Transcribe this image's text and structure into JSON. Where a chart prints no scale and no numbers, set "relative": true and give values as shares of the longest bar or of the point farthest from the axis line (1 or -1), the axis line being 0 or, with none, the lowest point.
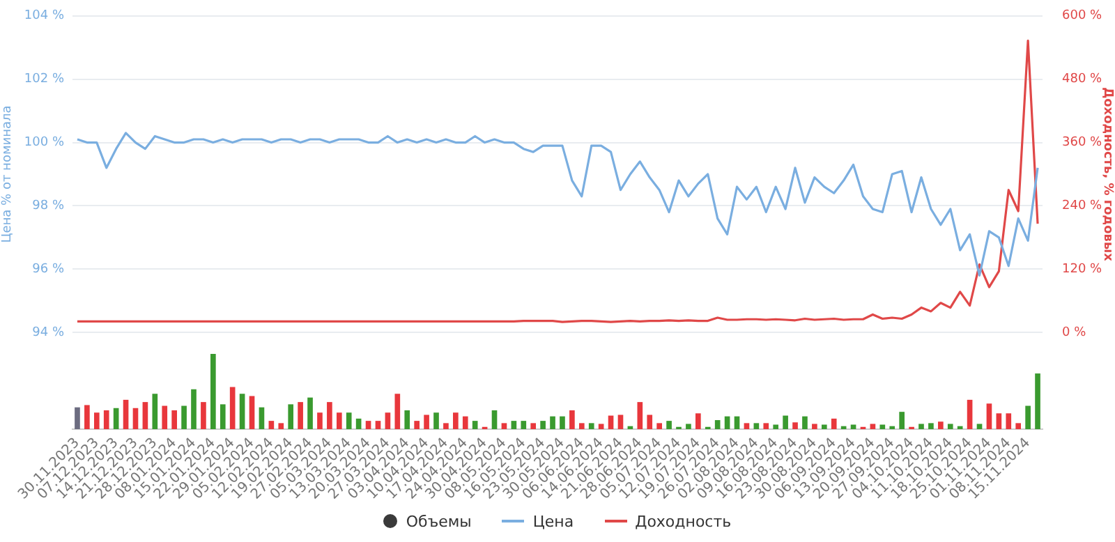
{
  "chart_data": [
    {
      "type": "line",
      "ylabel": "Цена % от номинала",
      "y2label": "Доходность, % годовых",
      "categories": [
        "30.11.2023",
        null,
        "07.12.2023",
        null,
        "14.12.2023",
        null,
        "21.12.2023",
        null,
        "28.12.2023",
        null,
        "08.01.2024",
        null,
        "15.01.2024",
        null,
        "22.01.2024",
        null,
        "29.01.2024",
        null,
        "05.02.2024",
        null,
        "12.02.2024",
        null,
        "19.02.2024",
        null,
        "27.02.2024",
        null,
        "05.03.2024",
        null,
        "13.03.2024",
        null,
        "20.03.2024",
        null,
        "27.03.2024",
        null,
        "03.04.2024",
        null,
        "10.04.2024",
        null,
        "17.04.2024",
        null,
        "24.04.2024",
        null,
        "30.04.2024",
        null,
        "08.05.2024",
        null,
        "16.05.2024",
        null,
        "23.05.2024",
        null,
        "30.05.2024",
        null,
        "06.06.2024",
        null,
        "14.06.2024",
        null,
        "21.06.2024",
        null,
        "28.06.2024",
        null,
        "05.07.2024",
        null,
        "12.07.2024",
        null,
        "19.07.2024",
        null,
        "26.07.2024",
        null,
        "02.08.2024",
        null,
        "09.08.2024",
        null,
        "16.08.2024",
        null,
        "23.08.2024",
        null,
        "30.08.2024",
        null,
        "06.09.2024",
        null,
        "13.09.2024",
        null,
        "20.09.2024",
        null,
        "27.09.2024",
        null,
        "04.10.2024",
        null,
        "11.10.2024",
        null,
        "18.10.2024",
        null,
        "25.10.2024",
        null,
        "01.11.2024",
        null,
        "08.11.2024",
        null,
        "15.11.2024",
        null
      ],
      "series": [
        {
          "name": "Цена",
          "color": "#7aaee0",
          "values": [
            100.1,
            100.0,
            100.0,
            99.2,
            99.8,
            100.3,
            100.0,
            99.8,
            100.2,
            100.1,
            100.0,
            100.0,
            100.1,
            100.1,
            100.0,
            100.1,
            100.0,
            100.1,
            100.1,
            100.1,
            100.0,
            100.1,
            100.1,
            100.0,
            100.1,
            100.1,
            100.0,
            100.1,
            100.1,
            100.1,
            100.0,
            100.0,
            100.2,
            100.0,
            100.1,
            100.0,
            100.1,
            100.0,
            100.1,
            100.0,
            100.0,
            100.2,
            100.0,
            100.1,
            100.0,
            100.0,
            99.8,
            99.7,
            99.9,
            99.9,
            99.9,
            98.8,
            98.3,
            99.9,
            99.9,
            99.7,
            98.5,
            99.0,
            99.4,
            98.9,
            98.5,
            97.8,
            98.8,
            98.3,
            98.7,
            99.0,
            97.6,
            97.1,
            98.6,
            98.2,
            98.6,
            97.8,
            98.6,
            97.9,
            99.2,
            98.1,
            98.9,
            98.6,
            98.4,
            98.8,
            99.3,
            98.3,
            97.9,
            97.8,
            99.0,
            99.1,
            97.8,
            98.9,
            97.9,
            97.4,
            97.9,
            96.6,
            97.1,
            95.8,
            97.2,
            97.0,
            96.1,
            97.6,
            96.9,
            99.2
          ]
        },
        {
          "name": "Доходность",
          "color": "#e04848",
          "axis": "y2",
          "values": [
            21,
            21,
            21,
            21,
            21,
            21,
            21,
            21,
            21,
            21,
            21,
            21,
            21,
            21,
            21,
            21,
            21,
            21,
            21,
            21,
            21,
            21,
            21,
            21,
            21,
            21,
            21,
            21,
            21,
            21,
            21,
            21,
            21,
            21,
            21,
            21,
            21,
            21,
            21,
            21,
            21,
            21,
            21,
            21,
            21,
            21,
            22,
            22,
            22,
            22,
            20,
            21,
            22,
            22,
            21,
            20,
            21,
            22,
            21,
            22,
            22,
            23,
            22,
            23,
            22,
            22,
            28,
            24,
            24,
            25,
            25,
            24,
            25,
            24,
            23,
            26,
            24,
            25,
            26,
            24,
            25,
            25,
            34,
            26,
            28,
            26,
            34,
            47,
            40,
            56,
            47,
            77,
            51,
            129,
            86,
            116,
            270,
            230,
            553,
            206
          ]
        }
      ],
      "ylim": [
        94,
        104
      ],
      "yticks": [
        {
          "value": 94,
          "label": "94 %"
        },
        {
          "value": 96,
          "label": "96 %"
        },
        {
          "value": 98,
          "label": "98 %"
        },
        {
          "value": 100,
          "label": "100 %"
        },
        {
          "value": 102,
          "label": "102 %"
        },
        {
          "value": 104,
          "label": "104 %"
        }
      ],
      "y2lim": [
        0,
        600
      ],
      "y2ticks": [
        {
          "value": 0,
          "label": "0 %"
        },
        {
          "value": 120,
          "label": "120 %"
        },
        {
          "value": 240,
          "label": "240 %"
        },
        {
          "value": 360,
          "label": "360 %"
        },
        {
          "value": 480,
          "label": "480 %"
        },
        {
          "value": 600,
          "label": "600 %"
        }
      ],
      "tick_labels": "y",
      "grid": "y",
      "legend": "bottom"
    },
    {
      "type": "bar",
      "relative": true,
      "categories": [
        "30.11.2023",
        null,
        "07.12.2023",
        null,
        "14.12.2023",
        null,
        "21.12.2023",
        null,
        "28.12.2023",
        null,
        "08.01.2024",
        null,
        "15.01.2024",
        null,
        "22.01.2024",
        null,
        "29.01.2024",
        null,
        "05.02.2024",
        null,
        "12.02.2024",
        null,
        "19.02.2024",
        null,
        "27.02.2024",
        null,
        "05.03.2024",
        null,
        "13.03.2024",
        null,
        "20.03.2024",
        null,
        "27.03.2024",
        null,
        "03.04.2024",
        null,
        "10.04.2024",
        null,
        "17.04.2024",
        null,
        "24.04.2024",
        null,
        "30.04.2024",
        null,
        "08.05.2024",
        null,
        "16.05.2024",
        null,
        "23.05.2024",
        null,
        "30.05.2024",
        null,
        "06.06.2024",
        null,
        "14.06.2024",
        null,
        "21.06.2024",
        null,
        "28.06.2024",
        null,
        "05.07.2024",
        null,
        "12.07.2024",
        null,
        "19.07.2024",
        null,
        "26.07.2024",
        null,
        "02.08.2024",
        null,
        "09.08.2024",
        null,
        "16.08.2024",
        null,
        "23.08.2024",
        null,
        "30.08.2024",
        null,
        "06.09.2024",
        null,
        "13.09.2024",
        null,
        "20.09.2024",
        null,
        "27.09.2024",
        null,
        "04.10.2024",
        null,
        "11.10.2024",
        null,
        "18.10.2024",
        null,
        "25.10.2024",
        null,
        "01.11.2024",
        null,
        "08.11.2024",
        null,
        "15.11.2024",
        null
      ],
      "series": [
        {
          "name": "Объемы",
          "values": [
            0.29,
            0.32,
            0.22,
            0.25,
            0.28,
            0.39,
            0.28,
            0.36,
            0.47,
            0.31,
            0.25,
            0.31,
            0.53,
            0.36,
            1,
            0.33,
            0.56,
            0.47,
            0.44,
            0.29,
            0.11,
            0.08,
            0.33,
            0.36,
            0.42,
            0.22,
            0.36,
            0.22,
            0.22,
            0.14,
            0.11,
            0.11,
            0.22,
            0.47,
            0.25,
            0.11,
            0.19,
            0.22,
            0.08,
            0.22,
            0.17,
            0.11,
            0.03,
            0.25,
            0.08,
            0.11,
            0.11,
            0.08,
            0.11,
            0.17,
            0.17,
            0.25,
            0.08,
            0.08,
            0.07,
            0.18,
            0.19,
            0.04,
            0.36,
            0.19,
            0.08,
            0.11,
            0.03,
            0.07,
            0.21,
            0.03,
            0.12,
            0.17,
            0.17,
            0.08,
            0.08,
            0.08,
            0.06,
            0.18,
            0.09,
            0.17,
            0.07,
            0.06,
            0.14,
            0.04,
            0.06,
            0.03,
            0.07,
            0.06,
            0.04,
            0.23,
            0.03,
            0.07,
            0.08,
            0.1,
            0.07,
            0.04,
            0.39,
            0.07,
            0.34,
            0.21,
            0.21,
            0.08,
            0.31,
            0.74
          ],
          "colors": [
            "#6c6c80",
            "#e8373c",
            "#e8373c",
            "#e8373c",
            "#3a9a2f",
            "#e8373c",
            "#e8373c",
            "#e8373c",
            "#3a9a2f",
            "#e8373c",
            "#e8373c",
            "#3a9a2f",
            "#3a9a2f",
            "#e8373c",
            "#3a9a2f",
            "#3a9a2f",
            "#e8373c",
            "#3a9a2f",
            "#e8373c",
            "#3a9a2f",
            "#e8373c",
            "#e8373c",
            "#3a9a2f",
            "#e8373c",
            "#3a9a2f",
            "#e8373c",
            "#e8373c",
            "#e8373c",
            "#3a9a2f",
            "#3a9a2f",
            "#e8373c",
            "#e8373c",
            "#e8373c",
            "#e8373c",
            "#3a9a2f",
            "#e8373c",
            "#e8373c",
            "#3a9a2f",
            "#e8373c",
            "#e8373c",
            "#e8373c",
            "#3a9a2f",
            "#e8373c",
            "#3a9a2f",
            "#e8373c",
            "#3a9a2f",
            "#3a9a2f",
            "#e8373c",
            "#3a9a2f",
            "#3a9a2f",
            "#3a9a2f",
            "#e8373c",
            "#e8373c",
            "#3a9a2f",
            "#e8373c",
            "#e8373c",
            "#e8373c",
            "#3a9a2f",
            "#e8373c",
            "#e8373c",
            "#e8373c",
            "#3a9a2f",
            "#3a9a2f",
            "#3a9a2f",
            "#e8373c",
            "#3a9a2f",
            "#3a9a2f",
            "#3a9a2f",
            "#3a9a2f",
            "#e8373c",
            "#3a9a2f",
            "#e8373c",
            "#3a9a2f",
            "#3a9a2f",
            "#e8373c",
            "#3a9a2f",
            "#e8373c",
            "#3a9a2f",
            "#e8373c",
            "#3a9a2f",
            "#3a9a2f",
            "#e8373c",
            "#e8373c",
            "#3a9a2f",
            "#3a9a2f",
            "#3a9a2f",
            "#e8373c",
            "#3a9a2f",
            "#3a9a2f",
            "#e8373c",
            "#3a9a2f",
            "#3a9a2f",
            "#e8373c",
            "#3a9a2f",
            "#e8373c",
            "#e8373c",
            "#e8373c",
            "#e8373c",
            "#3a9a2f",
            "#3a9a2f"
          ]
        }
      ],
      "legend": "bottom"
    }
  ]
}
